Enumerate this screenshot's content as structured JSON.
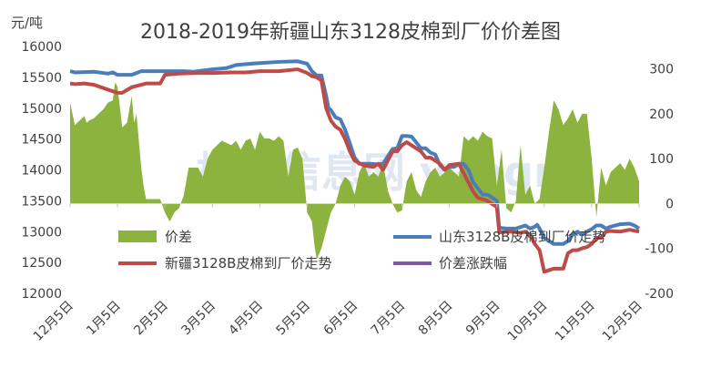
{
  "chart_data": {
    "type": "line",
    "title": "2018-2019年新疆山东3128皮棉到厂价价差图",
    "y_unit": "元/吨",
    "watermark": "棉花信息网 yaagric",
    "categories": [
      "12月5日",
      "1月5日",
      "2月5日",
      "3月5日",
      "4月5日",
      "5月5日",
      "6月5日",
      "7月5日",
      "8月5日",
      "9月5日",
      "10月5日",
      "11月5日",
      "12月5日"
    ],
    "y_left": {
      "min": 12000,
      "max": 16000,
      "step": 500
    },
    "y_right": {
      "min": -200,
      "max": 350,
      "step": 100
    },
    "grid": false,
    "legend_position": "bottom-inside",
    "legend": [
      "价差",
      "山东3128B皮棉到厂价走势",
      "新疆3128B皮棉到厂价走势",
      "价差涨跌幅"
    ],
    "series": [
      {
        "name": "价差",
        "type": "area",
        "axis": "right",
        "color": "#8db33f",
        "x": [
          0,
          0.1,
          0.2,
          0.3,
          0.35,
          0.4,
          0.5,
          0.6,
          0.7,
          0.8,
          0.9,
          0.95,
          1.0,
          1.05,
          1.1,
          1.2,
          1.3,
          1.35,
          1.4,
          1.5,
          1.55,
          1.6,
          1.7,
          1.8,
          1.9,
          2.0,
          2.1,
          2.2,
          2.3,
          2.4,
          2.5,
          2.6,
          2.7,
          2.8,
          2.9,
          3.0,
          3.1,
          3.2,
          3.3,
          3.4,
          3.5,
          3.6,
          3.7,
          3.8,
          3.9,
          4.0,
          4.1,
          4.2,
          4.3,
          4.4,
          4.5,
          4.6,
          4.7,
          4.8,
          4.9,
          5.0,
          5.1,
          5.15,
          5.2,
          5.3,
          5.4,
          5.5,
          5.6,
          5.7,
          5.8,
          5.9,
          6.0,
          6.1,
          6.2,
          6.3,
          6.4,
          6.5,
          6.6,
          6.7,
          6.8,
          6.9,
          7.0,
          7.1,
          7.2,
          7.3,
          7.4,
          7.5,
          7.6,
          7.7,
          7.8,
          7.9,
          8.0,
          8.1,
          8.2,
          8.3,
          8.4,
          8.5,
          8.6,
          8.7,
          8.8,
          8.9,
          9.0,
          9.1,
          9.2,
          9.3,
          9.4,
          9.5,
          9.6,
          9.7,
          9.8,
          9.9,
          10.0,
          10.1,
          10.2,
          10.3,
          10.4,
          10.5,
          10.6,
          10.7,
          10.8,
          10.9,
          11.0,
          11.1,
          11.2,
          11.3,
          11.4,
          11.5,
          11.6,
          11.7,
          11.8,
          11.9,
          12.0
        ],
        "values": [
          225,
          175,
          185,
          195,
          180,
          185,
          190,
          200,
          210,
          225,
          230,
          270,
          260,
          215,
          170,
          180,
          240,
          180,
          200,
          80,
          40,
          10,
          10,
          10,
          10,
          -20,
          -40,
          -20,
          -10,
          20,
          80,
          80,
          80,
          60,
          100,
          120,
          130,
          140,
          135,
          130,
          140,
          120,
          140,
          145,
          120,
          160,
          145,
          145,
          140,
          150,
          140,
          60,
          120,
          125,
          100,
          -20,
          -40,
          -90,
          -125,
          -100,
          -60,
          -20,
          0,
          40,
          60,
          50,
          20,
          70,
          90,
          60,
          70,
          60,
          90,
          30,
          0,
          -20,
          -15,
          50,
          70,
          30,
          15,
          50,
          70,
          80,
          60,
          70,
          80,
          70,
          60,
          150,
          140,
          150,
          140,
          160,
          150,
          145,
          40,
          120,
          -10,
          -20,
          5,
          130,
          20,
          40,
          0,
          10,
          80,
          160,
          230,
          210,
          175,
          190,
          210,
          180,
          200,
          200,
          100,
          -30,
          80,
          40,
          70,
          80,
          90,
          75,
          100,
          80,
          50
        ]
      },
      {
        "name": "山东3128B皮棉到厂价走势",
        "type": "line",
        "axis": "left",
        "color": "#4a7ebb",
        "x": [
          0,
          0.1,
          0.5,
          0.8,
          0.9,
          1.0,
          1.3,
          1.5,
          1.7,
          2.0,
          2.4,
          2.6,
          3.0,
          3.3,
          3.5,
          3.8,
          4.0,
          4.4,
          4.8,
          5.0,
          5.1,
          5.2,
          5.3,
          5.4,
          5.45,
          5.5,
          5.6,
          5.7,
          5.8,
          5.9,
          6.0,
          6.1,
          6.3,
          6.5,
          6.6,
          6.8,
          6.9,
          7.0,
          7.1,
          7.2,
          7.4,
          7.5,
          7.6,
          7.7,
          7.8,
          7.9,
          8.0,
          8.1,
          8.2,
          8.3,
          8.4,
          8.5,
          8.6,
          8.7,
          8.8,
          8.9,
          9.0,
          9.05,
          9.1,
          9.2,
          9.4,
          9.6,
          9.7,
          9.8,
          9.85,
          9.9,
          10.0,
          10.2,
          10.4,
          10.5,
          10.6,
          10.7,
          10.8,
          10.9,
          11.0,
          11.1,
          11.2,
          11.3,
          11.4,
          11.6,
          11.8,
          11.9,
          12.0
        ],
        "values": [
          15600,
          15580,
          15590,
          15560,
          15580,
          15540,
          15540,
          15600,
          15600,
          15600,
          15600,
          15590,
          15630,
          15650,
          15700,
          15720,
          15730,
          15750,
          15760,
          15720,
          15600,
          15530,
          15530,
          15200,
          15000,
          14970,
          14850,
          14820,
          14650,
          14430,
          14200,
          14100,
          14100,
          14090,
          14100,
          14340,
          14350,
          14550,
          14550,
          14540,
          14350,
          14350,
          14280,
          14250,
          14080,
          14000,
          14050,
          14050,
          14100,
          14100,
          14000,
          13800,
          13700,
          13600,
          13600,
          13550,
          13500,
          13050,
          13060,
          13050,
          13050,
          13100,
          13050,
          13080,
          13110,
          13050,
          12900,
          12800,
          12800,
          12850,
          12950,
          13000,
          12950,
          13000,
          13040,
          13100,
          13100,
          13050,
          13080,
          13120,
          13130,
          13100,
          13050
        ]
      },
      {
        "name": "新疆3128B皮棉到厂价走势",
        "type": "line",
        "axis": "left",
        "color": "#be4b48",
        "x": [
          0,
          0.1,
          0.3,
          0.5,
          0.8,
          1.0,
          1.1,
          1.3,
          1.5,
          1.6,
          1.9,
          2.0,
          2.3,
          2.7,
          3.0,
          3.4,
          3.7,
          4.0,
          4.4,
          4.8,
          5.0,
          5.1,
          5.2,
          5.3,
          5.4,
          5.45,
          5.5,
          5.6,
          5.7,
          5.8,
          5.9,
          6.0,
          6.2,
          6.4,
          6.5,
          6.6,
          6.8,
          6.9,
          7.0,
          7.1,
          7.2,
          7.4,
          7.5,
          7.6,
          7.7,
          7.8,
          7.9,
          8.0,
          8.2,
          8.4,
          8.5,
          8.6,
          8.8,
          9.0,
          9.05,
          9.1,
          9.3,
          9.5,
          9.6,
          9.7,
          9.8,
          9.9,
          10.0,
          10.2,
          10.4,
          10.5,
          10.6,
          10.7,
          10.8,
          10.9,
          11.0,
          11.1,
          11.2,
          11.3,
          11.4,
          11.6,
          11.8,
          12.0
        ],
        "values": [
          15400,
          15390,
          15400,
          15380,
          15300,
          15250,
          15250,
          15340,
          15380,
          15400,
          15400,
          15540,
          15560,
          15570,
          15570,
          15580,
          15580,
          15600,
          15600,
          15630,
          15570,
          15520,
          15500,
          15450,
          15000,
          14900,
          14800,
          14700,
          14650,
          14500,
          14300,
          14150,
          14070,
          14050,
          14100,
          14000,
          14300,
          14300,
          14400,
          14450,
          14400,
          14300,
          14200,
          14200,
          14150,
          14100,
          14000,
          14080,
          14100,
          13800,
          13650,
          13550,
          13500,
          13400,
          12990,
          12990,
          13000,
          12980,
          13000,
          12950,
          12800,
          12700,
          12350,
          12400,
          12400,
          12650,
          12700,
          12700,
          12730,
          12750,
          12800,
          12900,
          12900,
          13000,
          13010,
          13000,
          13030,
          13000
        ]
      },
      {
        "name": "价差涨跌幅",
        "type": "line",
        "axis": "right",
        "color": "#7e5aa4",
        "x": [],
        "values": []
      }
    ]
  }
}
